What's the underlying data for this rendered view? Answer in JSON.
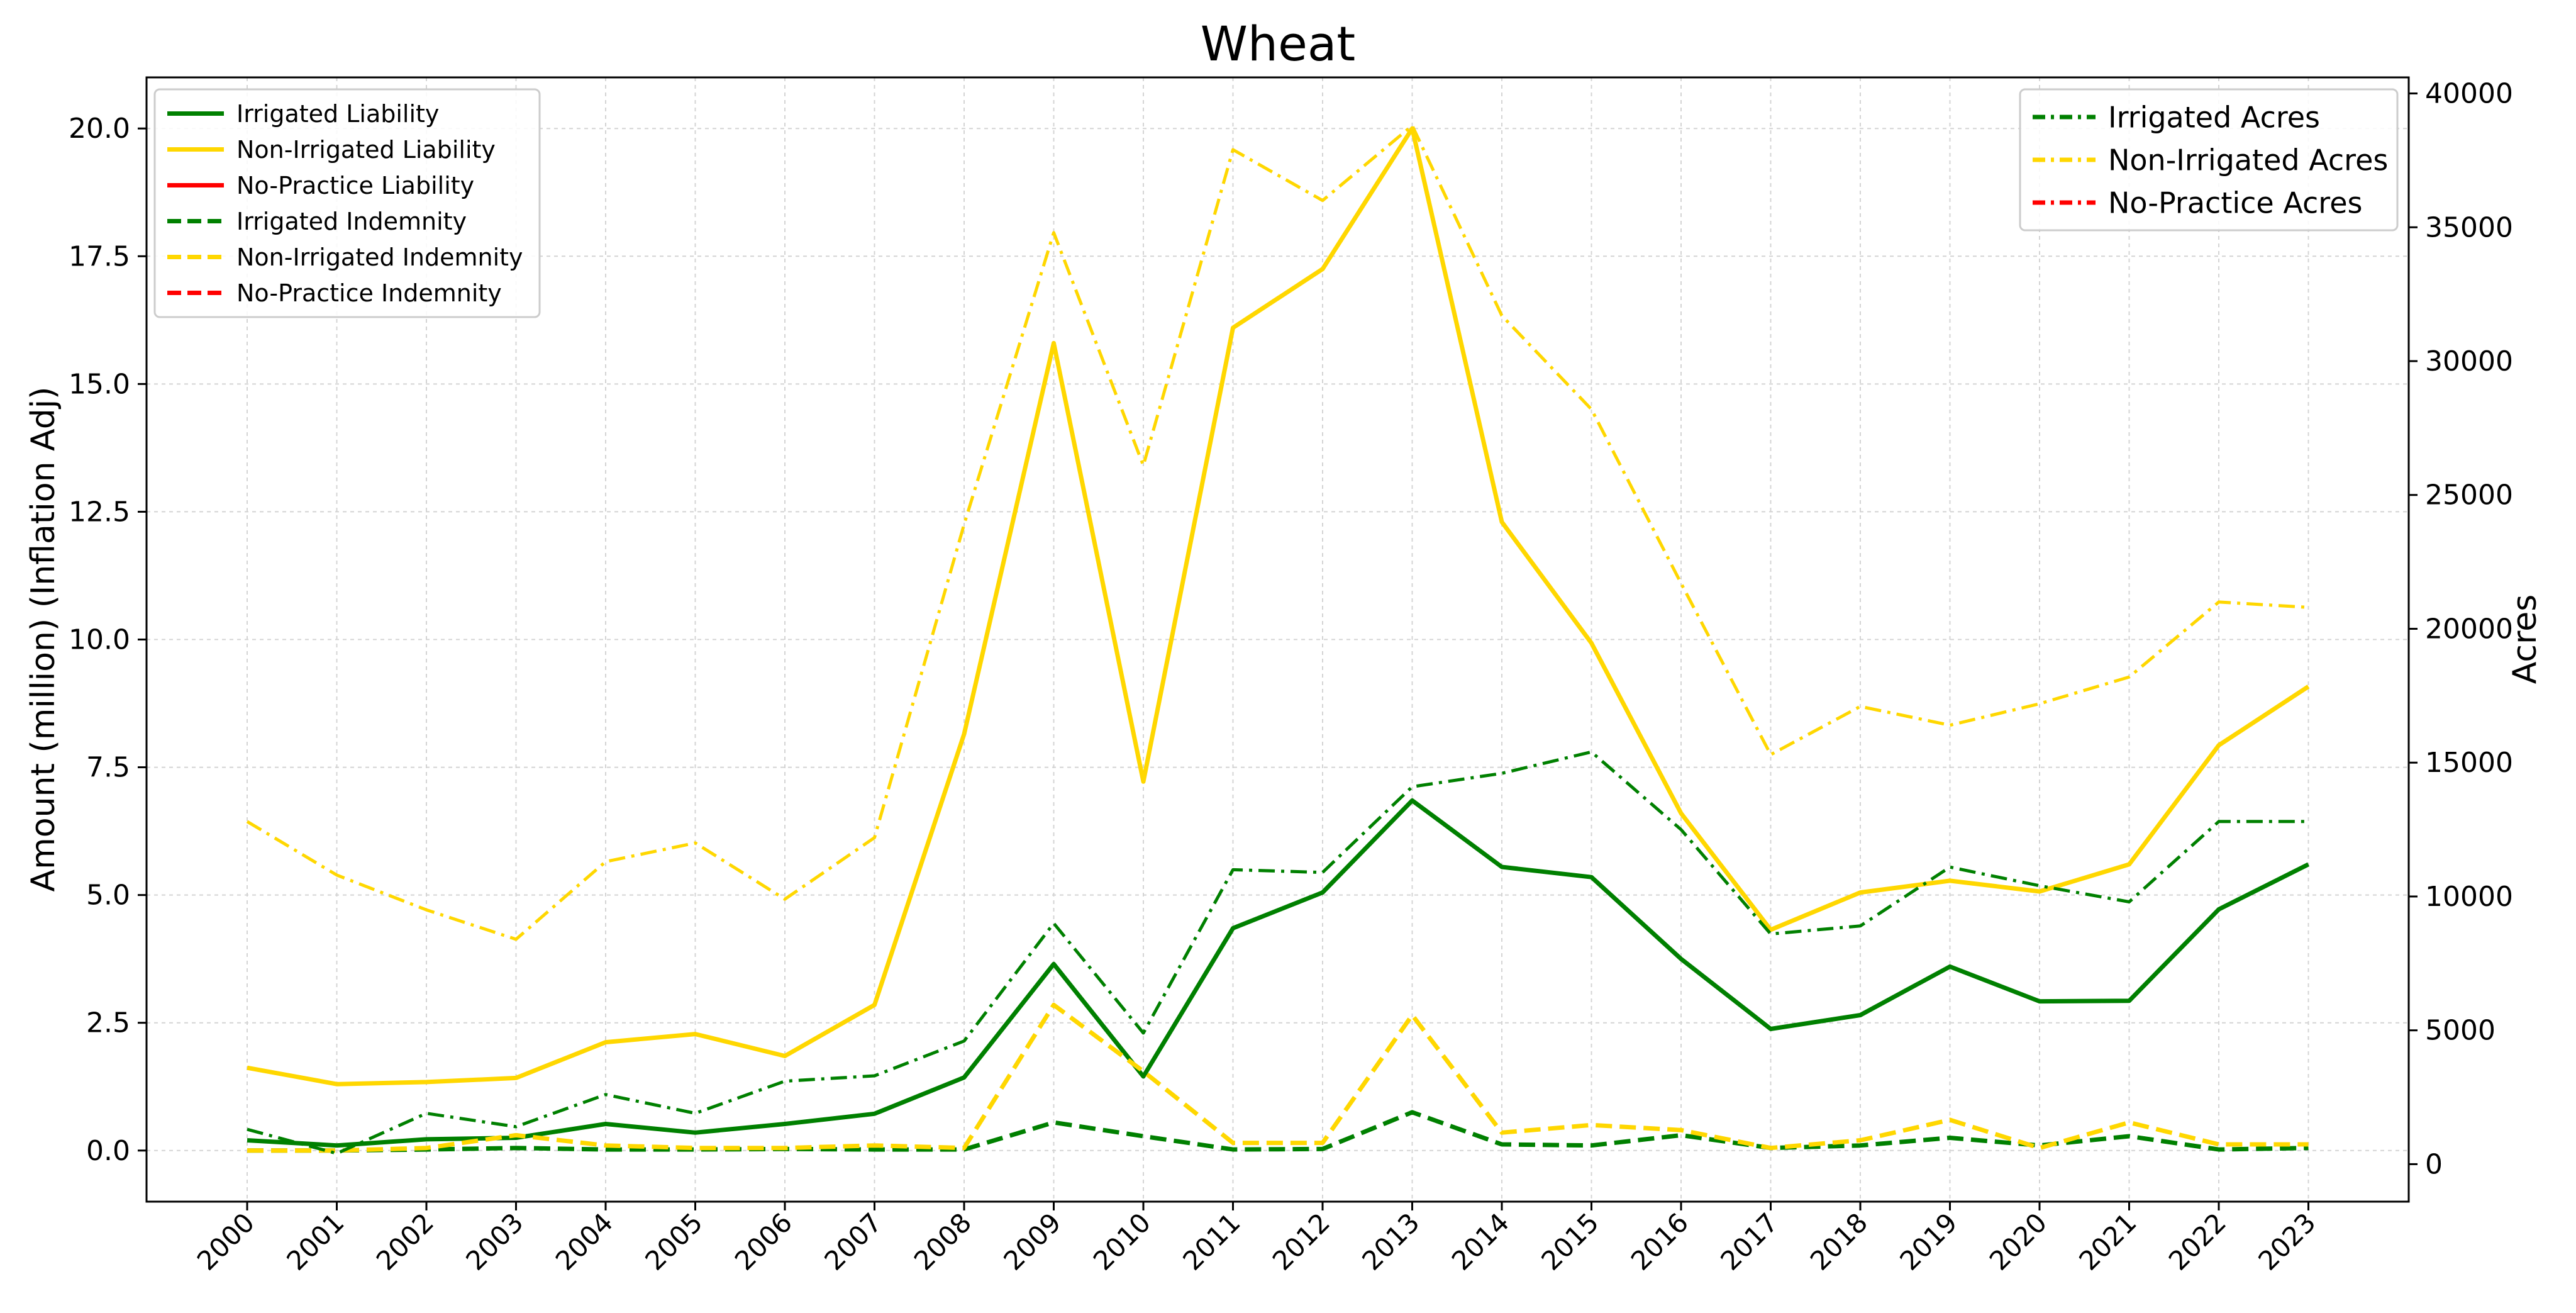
{
  "chart_data": {
    "type": "line",
    "title": "Wheat",
    "xlabel": "",
    "ylabel": "Amount (million) (Inflation Adj)",
    "y2label": "Acres",
    "categories": [
      "2000",
      "2001",
      "2002",
      "2003",
      "2004",
      "2005",
      "2006",
      "2007",
      "2008",
      "2009",
      "2010",
      "2011",
      "2012",
      "2013",
      "2014",
      "2015",
      "2016",
      "2017",
      "2018",
      "2019",
      "2020",
      "2021",
      "2022",
      "2023"
    ],
    "ylim": [
      -1.0,
      21.0
    ],
    "y2lim": [
      -1400,
      40600
    ],
    "yticks": [
      0.0,
      2.5,
      5.0,
      7.5,
      10.0,
      12.5,
      15.0,
      17.5,
      20.0
    ],
    "ytick_labels": [
      "0.0",
      "2.5",
      "5.0",
      "7.5",
      "10.0",
      "12.5",
      "15.0",
      "17.5",
      "20.0"
    ],
    "y2ticks": [
      0,
      5000,
      10000,
      15000,
      20000,
      25000,
      30000,
      35000,
      40000
    ],
    "y2tick_labels": [
      "0",
      "5000",
      "10000",
      "15000",
      "20000",
      "25000",
      "30000",
      "35000",
      "40000"
    ],
    "grid": true,
    "legend_left": {
      "placement": "top-left",
      "entries": [
        {
          "label": "Irrigated Liability",
          "color": "#008000",
          "style": "solid"
        },
        {
          "label": "Non-Irrigated Liability",
          "color": "#FFD700",
          "style": "solid"
        },
        {
          "label": "No-Practice Liability",
          "color": "#FF0000",
          "style": "solid"
        },
        {
          "label": "Irrigated Indemnity",
          "color": "#008000",
          "style": "dashed"
        },
        {
          "label": "Non-Irrigated Indemnity",
          "color": "#FFD700",
          "style": "dashed"
        },
        {
          "label": "No-Practice Indemnity",
          "color": "#FF0000",
          "style": "dashed"
        }
      ]
    },
    "legend_right": {
      "placement": "top-right",
      "entries": [
        {
          "label": "Irrigated Acres",
          "color": "#008000",
          "style": "dashdot"
        },
        {
          "label": "Non-Irrigated Acres",
          "color": "#FFD700",
          "style": "dashdot"
        },
        {
          "label": "No-Practice Acres",
          "color": "#FF0000",
          "style": "dashdot"
        }
      ]
    },
    "series": [
      {
        "name": "Irrigated Liability",
        "axis": "left",
        "color": "#008000",
        "style": "solid",
        "values": [
          0.2,
          0.1,
          0.22,
          0.25,
          0.52,
          0.35,
          0.52,
          0.72,
          1.43,
          3.65,
          1.45,
          4.35,
          5.05,
          6.85,
          5.55,
          5.35,
          3.75,
          2.38,
          2.65,
          3.6,
          2.92,
          2.93,
          4.72,
          5.6
        ]
      },
      {
        "name": "Non-Irrigated Liability",
        "axis": "left",
        "color": "#FFD700",
        "style": "solid",
        "values": [
          1.62,
          1.3,
          1.34,
          1.42,
          2.12,
          2.28,
          1.85,
          2.85,
          8.15,
          15.8,
          7.22,
          16.1,
          17.25,
          20.0,
          12.3,
          9.93,
          6.6,
          4.32,
          5.05,
          5.28,
          5.07,
          5.6,
          7.93,
          9.08
        ]
      },
      {
        "name": "Irrigated Indemnity",
        "axis": "left",
        "color": "#008000",
        "style": "dashed",
        "values": [
          0.0,
          0.0,
          0.02,
          0.05,
          0.02,
          0.02,
          0.03,
          0.02,
          0.02,
          0.55,
          0.28,
          0.02,
          0.03,
          0.75,
          0.12,
          0.1,
          0.3,
          0.05,
          0.1,
          0.25,
          0.1,
          0.28,
          0.02,
          0.05
        ]
      },
      {
        "name": "Non-Irrigated Indemnity",
        "axis": "left",
        "color": "#FFD700",
        "style": "dashed",
        "values": [
          0.0,
          0.0,
          0.05,
          0.3,
          0.1,
          0.05,
          0.05,
          0.1,
          0.05,
          2.85,
          1.55,
          0.15,
          0.15,
          2.65,
          0.35,
          0.5,
          0.4,
          0.05,
          0.2,
          0.6,
          0.05,
          0.55,
          0.12,
          0.12
        ]
      },
      {
        "name": "Irrigated Acres",
        "axis": "right",
        "color": "#008000",
        "style": "dashdot",
        "values": [
          1300,
          400,
          1900,
          1400,
          2600,
          1900,
          3100,
          3300,
          4600,
          9000,
          4900,
          11000,
          10900,
          14100,
          14600,
          15400,
          12500,
          8600,
          8900,
          11100,
          10400,
          9800,
          12800,
          12800
        ]
      },
      {
        "name": "Non-Irrigated Acres",
        "axis": "right",
        "color": "#FFD700",
        "style": "dashdot",
        "values": [
          12800,
          10800,
          9500,
          8400,
          11300,
          12000,
          9900,
          12200,
          23900,
          34800,
          26100,
          37900,
          36000,
          38800,
          31700,
          28200,
          21700,
          15300,
          17100,
          16400,
          17200,
          18200,
          21000,
          20800
        ]
      }
    ]
  }
}
